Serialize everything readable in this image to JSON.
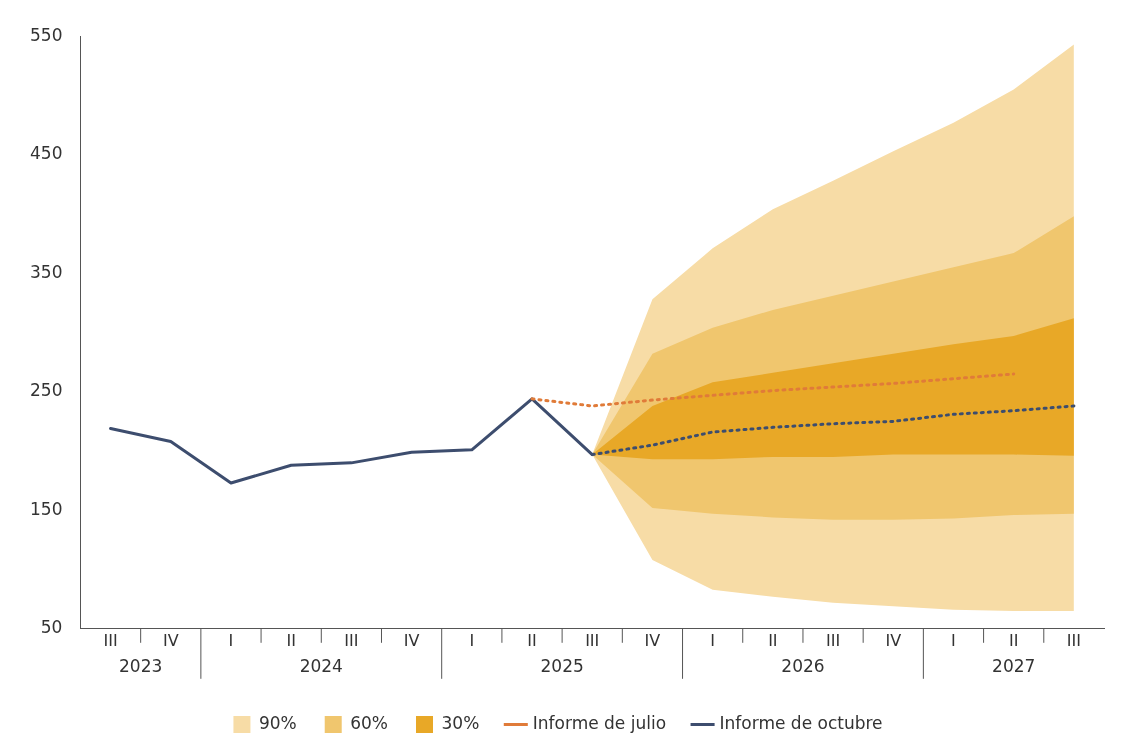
{
  "chart_data": {
    "type": "line",
    "categories": [
      "III",
      "IV",
      "I",
      "II",
      "III",
      "IV",
      "I",
      "II",
      "III",
      "IV",
      "I",
      "II",
      "III",
      "IV",
      "I",
      "II",
      "III"
    ],
    "ylim": [
      50,
      550
    ],
    "yticks": [
      50,
      150,
      250,
      350,
      450,
      550
    ],
    "annotations": [
      "2023",
      "2024",
      "2025",
      "2026",
      "2027"
    ],
    "series": [
      {
        "name": "90%",
        "type": "area",
        "color": "#f7dca6",
        "values": [
          null,
          null,
          null,
          null,
          null,
          null,
          null,
          null,
          null,
          null,
          null,
          null,
          null,
          null,
          null,
          null,
          null
        ],
        "lower": [
          null,
          null,
          null,
          null,
          null,
          null,
          null,
          null,
          197,
          108,
          83,
          77,
          72,
          69,
          66,
          65,
          65
        ],
        "upper": [
          null,
          null,
          null,
          null,
          null,
          null,
          null,
          null,
          197,
          328,
          371,
          404,
          428,
          453,
          477,
          505,
          543
        ]
      },
      {
        "name": "60%",
        "type": "area",
        "color": "#f0c66e",
        "values": [
          null,
          null,
          null,
          null,
          null,
          null,
          null,
          null,
          null,
          null,
          null,
          null,
          null,
          null,
          null,
          null,
          null
        ],
        "lower": [
          null,
          null,
          null,
          null,
          null,
          null,
          null,
          null,
          197,
          152,
          147,
          144,
          142,
          142,
          143,
          146,
          147
        ],
        "upper": [
          null,
          null,
          null,
          null,
          null,
          null,
          null,
          null,
          197,
          282,
          304,
          319,
          331,
          343,
          355,
          367,
          398
        ]
      },
      {
        "name": "30%",
        "type": "area",
        "color": "#e8a827",
        "values": [
          null,
          null,
          null,
          null,
          null,
          null,
          null,
          null,
          null,
          null,
          null,
          null,
          null,
          null,
          null,
          null,
          null
        ],
        "lower": [
          null,
          null,
          null,
          null,
          null,
          null,
          null,
          null,
          197,
          193,
          193,
          195,
          195,
          197,
          197,
          197,
          196
        ],
        "upper": [
          null,
          null,
          null,
          null,
          null,
          null,
          null,
          null,
          197,
          238,
          258,
          266,
          274,
          282,
          290,
          297,
          312
        ]
      },
      {
        "name": "Informe de julio",
        "color": "#e07b39",
        "line_style": "dotted",
        "values": [
          null,
          null,
          null,
          null,
          null,
          null,
          null,
          244,
          238,
          243,
          247,
          251,
          254,
          257,
          261,
          265,
          null
        ]
      },
      {
        "name": "Informe de octubre",
        "color": "#3d4d6e",
        "line_style": "solid",
        "values": [
          219,
          208,
          173,
          188,
          190,
          199,
          201,
          244,
          197,
          null,
          null,
          null,
          null,
          null,
          null,
          null,
          null
        ]
      },
      {
        "color": "#3d4d6e",
        "line_style": "dotted",
        "values": [
          null,
          null,
          null,
          null,
          null,
          null,
          null,
          null,
          197,
          205,
          216,
          220,
          223,
          225,
          231,
          234,
          238
        ]
      }
    ],
    "legend": "bottom",
    "grid": false
  }
}
